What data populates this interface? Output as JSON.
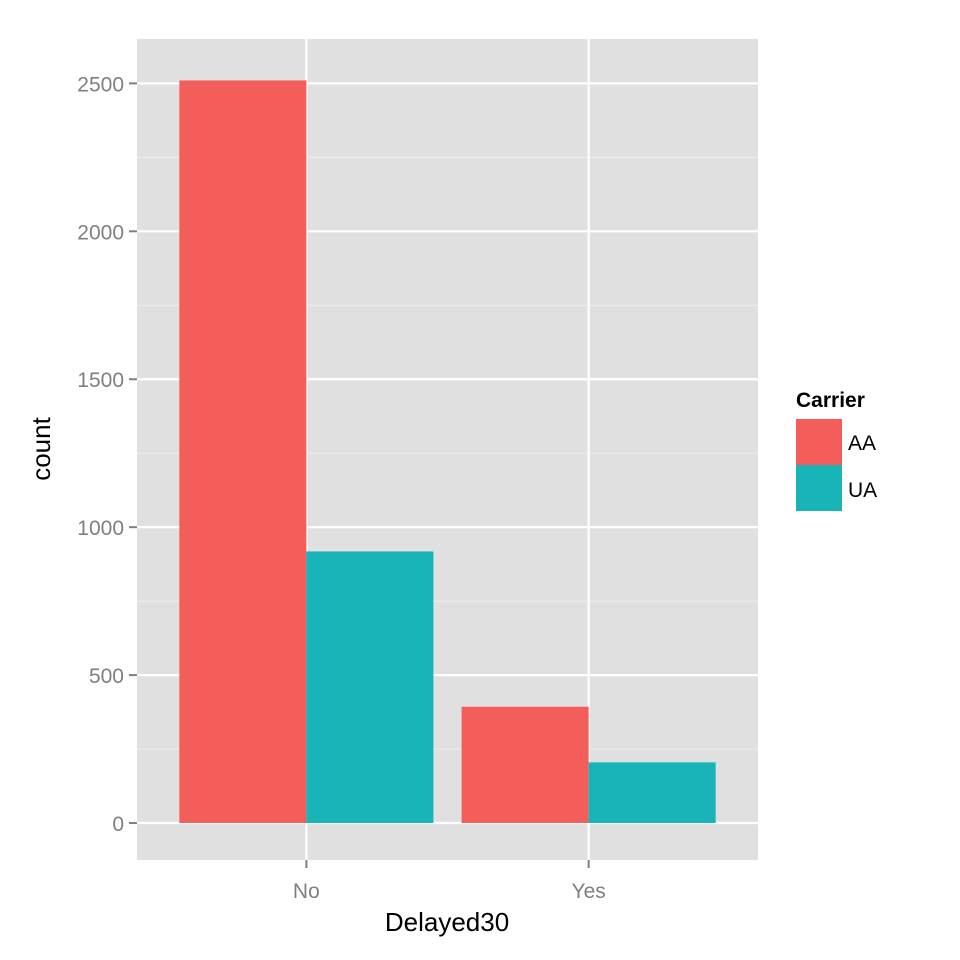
{
  "chart_data": {
    "type": "bar",
    "title": "",
    "xlabel": "Delayed30",
    "ylabel": "count",
    "categories": [
      "No",
      "Yes"
    ],
    "series": [
      {
        "name": "AA",
        "values": [
          2510,
          393
        ],
        "color": "#F35E5A"
      },
      {
        "name": "UA",
        "values": [
          918,
          205
        ],
        "color": "#19B4B8"
      }
    ],
    "ylim": [
      -125,
      2650
    ],
    "yticks": [
      0,
      500,
      1000,
      1500,
      2000,
      2500
    ],
    "ytick_labels": [
      "0",
      "500",
      "1000",
      "1500",
      "2000",
      "2500"
    ],
    "grid": true,
    "legend": {
      "title": "Carrier",
      "position": "right",
      "entries": [
        "AA",
        "UA"
      ]
    },
    "colors": {
      "panel_background": "#E0E0E0",
      "grid_major": "#FFFFFF",
      "grid_minor": "#EDEDED",
      "tick_text": "#7F7F7F"
    }
  }
}
